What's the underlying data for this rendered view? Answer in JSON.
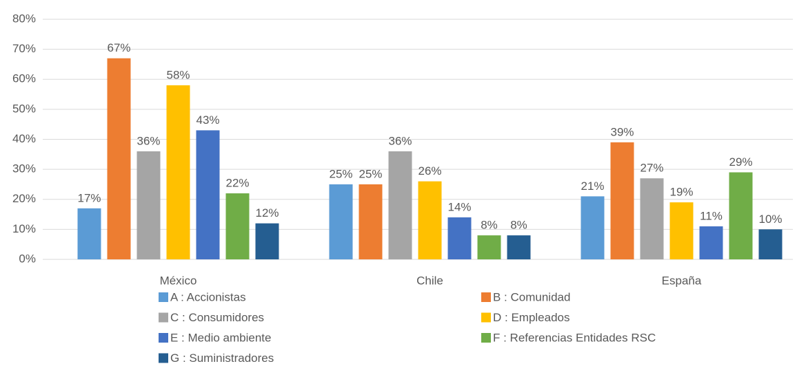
{
  "chart_data": {
    "type": "bar",
    "categories": [
      "México",
      "Chile",
      "España"
    ],
    "series": [
      {
        "name": "A : Accionistas",
        "color": "#5b9bd5",
        "values": [
          17,
          25,
          21
        ],
        "value_labels": [
          "17%",
          "25%",
          "21%"
        ]
      },
      {
        "name": "B : Comunidad",
        "color": "#ed7d31",
        "values": [
          67,
          25,
          39
        ],
        "value_labels": [
          "67%",
          "25%",
          "39%"
        ]
      },
      {
        "name": "C : Consumidores",
        "color": "#a5a5a5",
        "values": [
          36,
          36,
          27
        ],
        "value_labels": [
          "36%",
          "36%",
          "27%"
        ]
      },
      {
        "name": "D : Empleados",
        "color": "#ffc000",
        "values": [
          58,
          26,
          19
        ],
        "value_labels": [
          "58%",
          "26%",
          "19%"
        ]
      },
      {
        "name": "E : Medio ambiente",
        "color": "#4472c4",
        "values": [
          43,
          14,
          11
        ],
        "value_labels": [
          "43%",
          "14%",
          "11%"
        ]
      },
      {
        "name": "F : Referencias Entidades RSC",
        "color": "#70ad47",
        "values": [
          22,
          8,
          29
        ],
        "value_labels": [
          "22%",
          "8%",
          "29%"
        ]
      },
      {
        "name": "G : Suministradores",
        "color": "#255e91",
        "values": [
          12,
          8,
          10
        ],
        "value_labels": [
          "12%",
          "8%",
          "10%"
        ]
      }
    ],
    "ylim": [
      0,
      80
    ],
    "yticks": [
      {
        "value": 0,
        "label": "0%"
      },
      {
        "value": 10,
        "label": "10%"
      },
      {
        "value": 20,
        "label": "20%"
      },
      {
        "value": 30,
        "label": "30%"
      },
      {
        "value": 40,
        "label": "40%"
      },
      {
        "value": 50,
        "label": "50%"
      },
      {
        "value": 60,
        "label": "60%"
      },
      {
        "value": 70,
        "label": "70%"
      },
      {
        "value": 80,
        "label": "80%"
      }
    ],
    "grid": true,
    "legend": "bottom"
  }
}
